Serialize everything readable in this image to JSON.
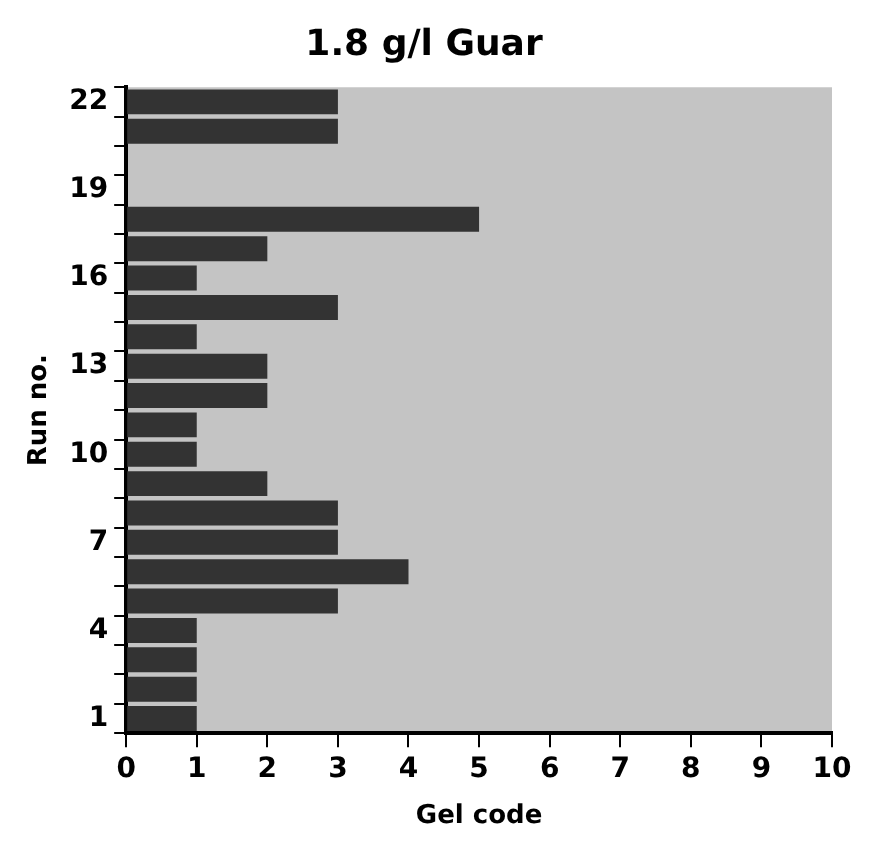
{
  "chart_data": {
    "type": "bar",
    "orientation": "horizontal",
    "title": "1.8 g/l Guar",
    "xlabel": "Gel code",
    "ylabel": "Run no.",
    "categories": [
      "22",
      null,
      null,
      "19",
      null,
      null,
      "16",
      null,
      null,
      "13",
      null,
      null,
      "10",
      null,
      null,
      "7",
      null,
      null,
      "4",
      null,
      null,
      "1"
    ],
    "values": [
      3,
      3,
      null,
      null,
      5,
      2,
      1,
      3,
      1,
      2,
      2,
      1,
      1,
      2,
      3,
      3,
      4,
      3,
      1,
      1,
      1,
      1
    ],
    "color": "#333333",
    "xlim": [
      0,
      10
    ],
    "xticks": [
      0,
      1,
      2,
      3,
      4,
      5,
      6,
      7,
      8,
      9,
      10
    ],
    "grid": false,
    "legend": false
  }
}
